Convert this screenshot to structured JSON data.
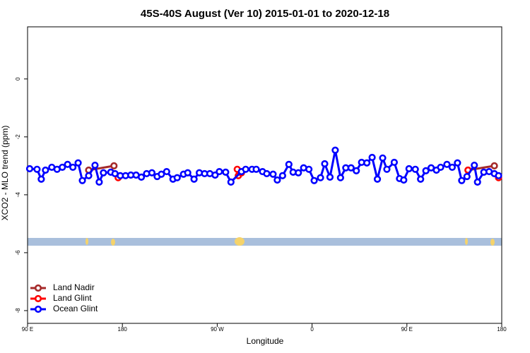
{
  "chart_data": {
    "type": "line",
    "title": "45S-40S August (Ver 10)   2015-01-01 to 2020-12-18",
    "x_label": "Longitude",
    "y_label": "XCO2 - MLO trend (ppm)",
    "xlim": [
      90,
      540
    ],
    "xticks": [
      {
        "value": 90,
        "label": "90 E"
      },
      180,
      {
        "value": 270,
        "label": "90 W"
      },
      {
        "value": 360,
        "label": "0"
      },
      {
        "value": 450,
        "label": "90 E"
      },
      {
        "value": 540,
        "label": "180"
      }
    ],
    "ylim": [
      -8.44,
      1.8
    ],
    "yticks": [
      0,
      -2,
      -4,
      -6,
      -8
    ],
    "legend": "bottom-left",
    "series": [
      {
        "name": "Land Nadir",
        "color": "#a52a2a",
        "x": [
          148,
          172,
          null,
          508,
          533
        ],
        "values": [
          -3.15,
          -3.0,
          null,
          -3.15,
          -3.0
        ]
      },
      {
        "name": "Land Glint",
        "color": "#ff0000",
        "x": [
          176,
          null,
          289,
          290,
          293,
          null,
          508,
          null,
          537
        ],
        "values": [
          -3.41,
          null,
          -3.12,
          -3.34,
          -3.24,
          null,
          -3.15,
          null,
          -3.41
        ]
      },
      {
        "name": "Ocean Glint",
        "color": "#0000ff",
        "x": [
          92,
          99,
          103,
          107,
          113,
          118,
          123,
          128,
          133,
          138,
          142,
          148,
          154,
          158,
          162,
          169,
          173,
          178,
          183,
          188,
          193,
          198,
          203,
          208,
          213,
          217,
          222,
          228,
          232,
          238,
          242,
          248,
          253,
          258,
          263,
          268,
          272,
          278,
          283,
          293,
          297,
          303,
          307,
          313,
          317,
          323,
          327,
          332,
          338,
          342,
          347,
          352,
          357,
          362,
          368,
          372,
          377,
          382,
          387,
          392,
          397,
          402,
          407,
          412,
          417,
          422,
          427,
          431,
          438,
          443,
          447,
          452,
          458,
          463,
          468,
          473,
          478,
          482,
          488,
          493,
          498,
          502,
          507,
          514,
          517,
          523,
          528,
          533,
          537
        ],
        "values": [
          -3.1,
          -3.12,
          -3.46,
          -3.15,
          -3.05,
          -3.12,
          -3.05,
          -2.95,
          -3.05,
          -2.9,
          -3.51,
          -3.34,
          -2.98,
          -3.56,
          -3.24,
          -3.22,
          -3.27,
          -3.34,
          -3.34,
          -3.32,
          -3.32,
          -3.39,
          -3.27,
          -3.24,
          -3.37,
          -3.29,
          -3.2,
          -3.46,
          -3.41,
          -3.29,
          -3.24,
          -3.46,
          -3.24,
          -3.27,
          -3.27,
          -3.32,
          -3.2,
          -3.22,
          -3.56,
          -3.2,
          -3.12,
          -3.12,
          -3.12,
          -3.2,
          -3.27,
          -3.29,
          -3.49,
          -3.34,
          -2.95,
          -3.22,
          -3.24,
          -3.07,
          -3.12,
          -3.51,
          -3.41,
          -2.93,
          -3.39,
          -2.46,
          -3.41,
          -3.07,
          -3.07,
          -3.17,
          -2.88,
          -2.9,
          -2.71,
          -3.46,
          -2.73,
          -3.12,
          -2.88,
          -3.44,
          -3.49,
          -3.1,
          -3.12,
          -3.46,
          -3.17,
          -3.07,
          -3.15,
          -3.05,
          -2.95,
          -3.05,
          -2.9,
          -3.51,
          -3.37,
          -2.98,
          -3.56,
          -3.22,
          -3.2,
          -3.27,
          -3.34
        ]
      }
    ]
  }
}
